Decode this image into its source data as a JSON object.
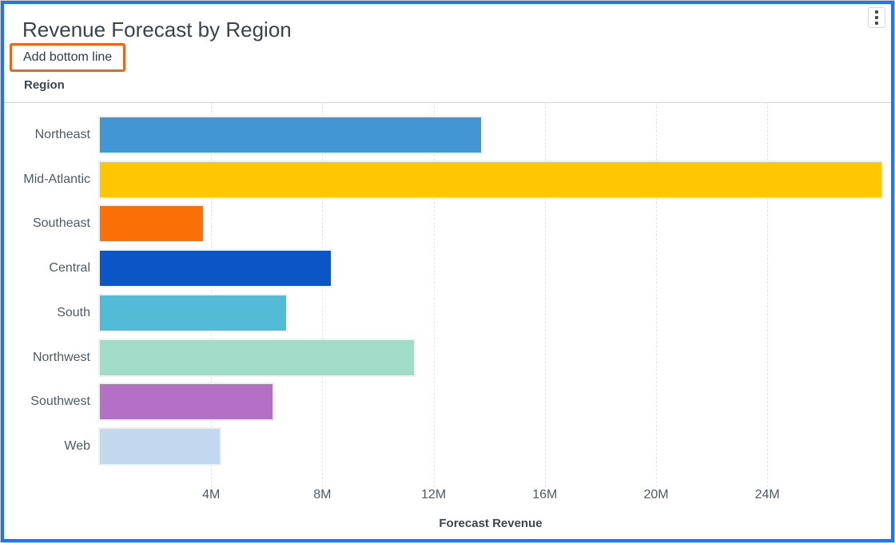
{
  "frame": {
    "border_color": "#2174f3"
  },
  "header": {
    "title": "Revenue Forecast by Region",
    "menu_icon": "kebab-menu-icon",
    "action_label": "Add bottom line",
    "action_highlight_color": "#e8671c"
  },
  "chart_data": {
    "type": "bar",
    "orientation": "horizontal",
    "title": "Revenue Forecast by Region",
    "ylabel": "Region",
    "xlabel": "Forecast Revenue",
    "categories": [
      "Northeast",
      "Mid-Atlantic",
      "Southeast",
      "Central",
      "South",
      "Northwest",
      "Southwest",
      "Web"
    ],
    "values_millions": [
      13.7,
      28.1,
      3.7,
      8.3,
      6.7,
      11.3,
      6.2,
      4.3
    ],
    "bar_colors": [
      "#4296d3",
      "#fec701",
      "#f97007",
      "#0c55c6",
      "#54bbd7",
      "#a1dcc9",
      "#b470c4",
      "#c1d8ee"
    ],
    "x_ticks": [
      "4M",
      "8M",
      "12M",
      "16M",
      "20M",
      "24M"
    ],
    "x_tick_values": [
      4,
      8,
      12,
      16,
      20,
      24
    ],
    "xlim": [
      0,
      28.1
    ],
    "grid": "vertical-dashed",
    "legend": "none"
  }
}
